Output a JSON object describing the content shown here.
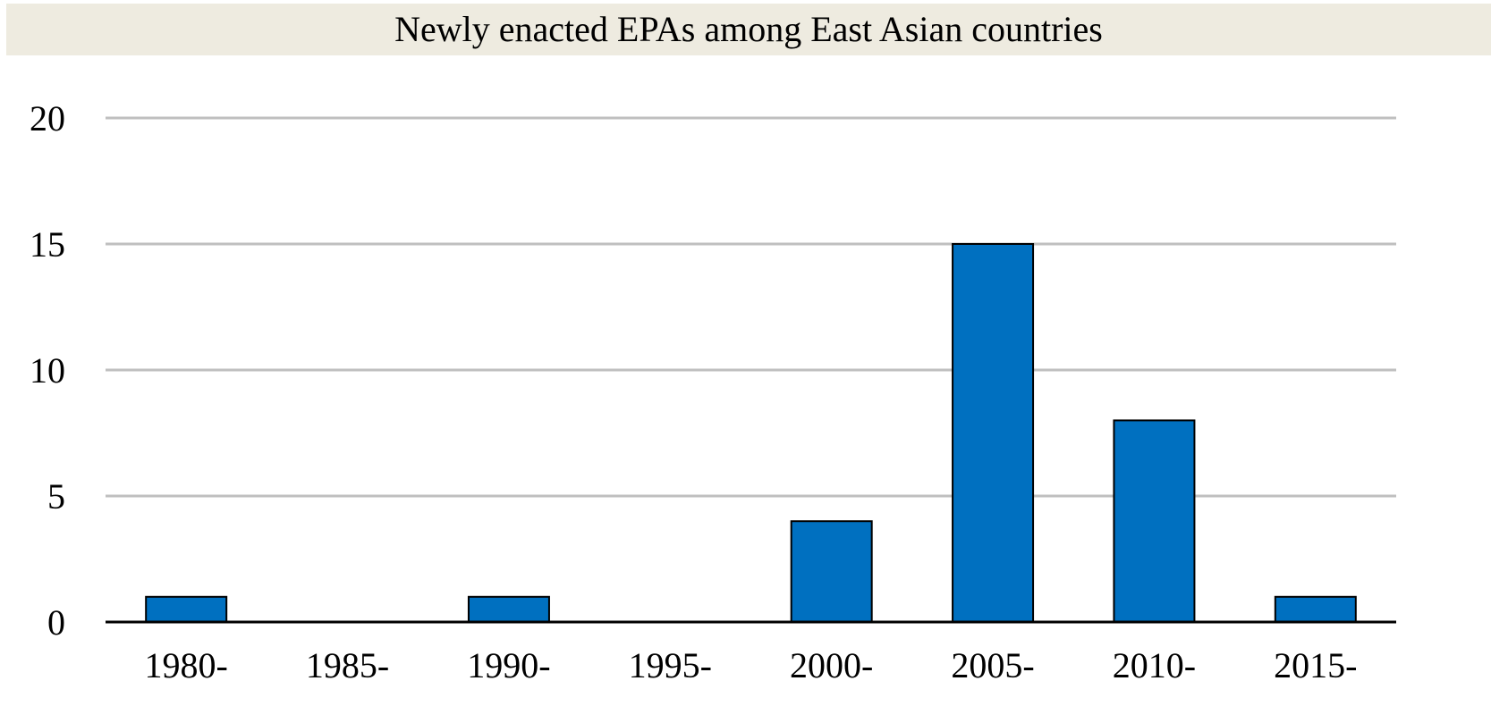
{
  "chart_data": {
    "type": "bar",
    "title": "Newly enacted EPAs among East Asian countries",
    "xlabel": "",
    "ylabel": "",
    "categories": [
      "1980-",
      "1985-",
      "1990-",
      "1995-",
      "2000-",
      "2005-",
      "2010-",
      "2015-"
    ],
    "values": [
      1,
      0,
      1,
      0,
      4,
      15,
      8,
      1
    ],
    "ylim": [
      0,
      20
    ],
    "yticks": [
      0,
      5,
      10,
      15,
      20
    ],
    "grid": true,
    "legend": "none",
    "colors": {
      "bar_fill": "#0070c0",
      "bar_stroke": "#000000",
      "gridline": "#bfbfbf",
      "axis": "#000000",
      "title_background": "#eeebe0"
    }
  }
}
